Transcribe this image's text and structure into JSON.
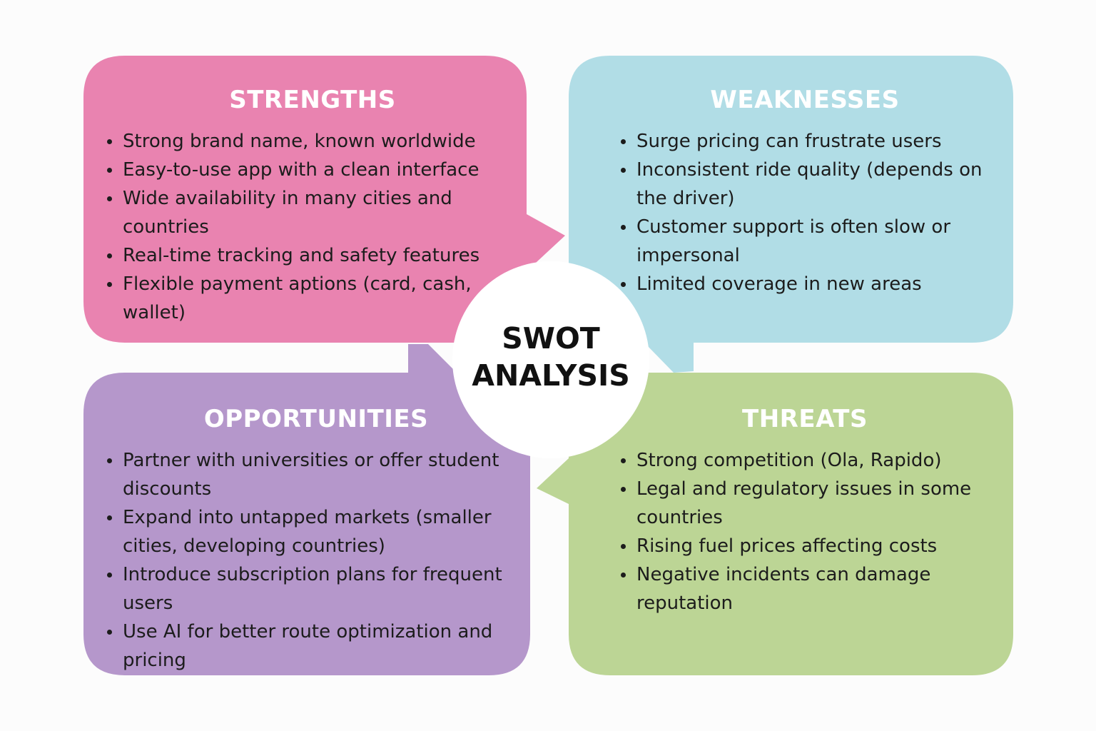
{
  "colors": {
    "strengths": "#e983b0",
    "weaknesses": "#b1dde6",
    "opportunities": "#b597cb",
    "threats": "#bcd595",
    "center": "#ffffff"
  },
  "center": {
    "line1": "SWOT",
    "line2": "ANALYSIS"
  },
  "quadrants": {
    "strengths": {
      "title": "STRENGTHS",
      "items": [
        "Strong brand name, known worldwide",
        "Easy-to-use app with a clean interface",
        "Wide availability in many cities and countries",
        "Real-time tracking and safety features",
        "Flexible payment aptions (card, cash, wallet)"
      ]
    },
    "weaknesses": {
      "title": "WEAKNESSES",
      "items": [
        "Surge pricing can frustrate users",
        "Inconsistent ride quality (depends on the driver)",
        "Customer support is often slow or impersonal",
        "Limited coverage in new areas"
      ]
    },
    "opportunities": {
      "title": "OPPORTUNITIES",
      "items": [
        "Partner with universities or offer student discounts",
        "Expand into untapped markets (smaller cities, developing countries)",
        "Introduce subscription plans for frequent users",
        "Use AI for better route optimization and pricing"
      ]
    },
    "threats": {
      "title": "THREATS",
      "items": [
        "Strong competition (Ola, Rapido)",
        "Legal and regulatory issues in some countries",
        "Rising fuel prices affecting costs",
        "Negative incidents can damage reputation"
      ]
    }
  }
}
